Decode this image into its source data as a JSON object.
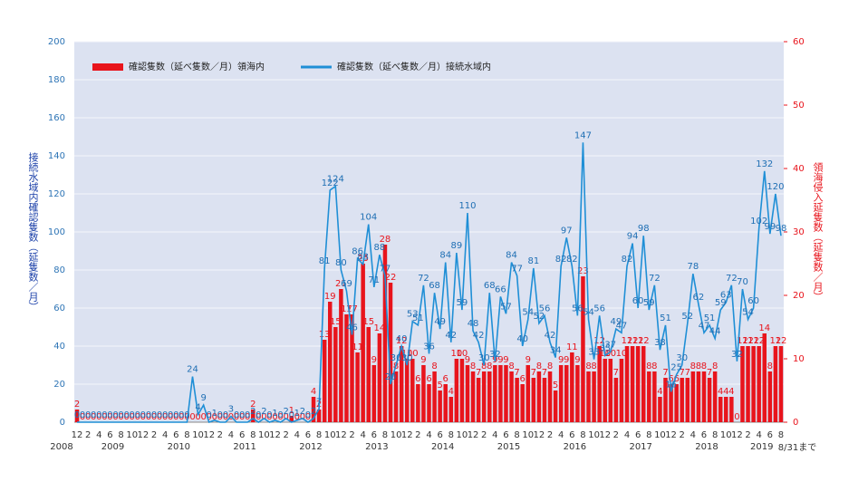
{
  "chart_data": {
    "type": "bar_line",
    "legend": "top-left",
    "grid": true,
    "y_title": "接続水域内確認隻数（延隻数／月）",
    "y2_title": "領海侵入延隻数（延隻数／月）",
    "categories": [
      "12",
      null,
      "2",
      null,
      "4",
      null,
      "6",
      null,
      "8",
      null,
      "10",
      null,
      "12",
      null,
      "2",
      null,
      "4",
      null,
      "6",
      null,
      "8",
      null,
      "10",
      null,
      "12",
      null,
      "2",
      null,
      "4",
      null,
      "6",
      null,
      "8",
      null,
      "10",
      null,
      "12",
      null,
      "2",
      null,
      "4",
      null,
      "6",
      null,
      "8",
      null,
      "10",
      null,
      "12",
      null,
      "2",
      null,
      "4",
      null,
      "6",
      null,
      "8",
      null,
      "10",
      null,
      "12",
      null,
      "2",
      null,
      "4",
      null,
      "6",
      null,
      "8",
      null,
      "10",
      null,
      "12",
      null,
      "2",
      null,
      "4",
      null,
      "6",
      null,
      "8",
      null,
      "10",
      null,
      "12",
      null,
      "2",
      null,
      "4",
      null,
      "6",
      null,
      "8",
      null,
      "10",
      null,
      "12",
      null,
      "2",
      null,
      "4",
      null,
      "6",
      null,
      "8",
      null,
      "10",
      null,
      "12",
      null,
      "2",
      null,
      "4",
      null,
      "6",
      null,
      "8",
      null,
      "10",
      null,
      "12",
      null,
      "2",
      null,
      "4",
      null,
      "6",
      null,
      "8"
    ],
    "years": [
      "2008",
      "2009",
      "2010",
      "2011",
      "2012",
      "2013",
      "2014",
      "2015",
      "2016",
      "2017",
      "2018",
      "2019"
    ],
    "period_note": "8/31まで",
    "ylim": [
      0,
      200
    ],
    "yticks": [
      0,
      20,
      40,
      60,
      80,
      100,
      120,
      140,
      160,
      180,
      200
    ],
    "y2lim": [
      0,
      60
    ],
    "y2ticks": [
      0,
      10,
      20,
      30,
      40,
      50,
      60
    ],
    "series": [
      {
        "name": "確認隻数（延べ隻数／月）領海内",
        "color": "#e8141c",
        "kind": "bar",
        "axis": "y2",
        "values": [
          2,
          0,
          0,
          0,
          0,
          0,
          0,
          0,
          0,
          0,
          0,
          0,
          0,
          0,
          0,
          0,
          0,
          0,
          0,
          0,
          0,
          0,
          0,
          0,
          0,
          0,
          0,
          0,
          0,
          0,
          0,
          0,
          2,
          0,
          0,
          0,
          0,
          0,
          0,
          1,
          0,
          0,
          0,
          4,
          2,
          13,
          19,
          15,
          21,
          17,
          17,
          11,
          25,
          15,
          9,
          14,
          28,
          22,
          8,
          12,
          10,
          10,
          6,
          9,
          6,
          8,
          5,
          6,
          4,
          10,
          10,
          9,
          8,
          7,
          8,
          8,
          9,
          9,
          9,
          8,
          7,
          6,
          9,
          7,
          8,
          7,
          8,
          5,
          9,
          9,
          11,
          9,
          23,
          8,
          8,
          12,
          10,
          10,
          7,
          10,
          12,
          12,
          12,
          12,
          8,
          8,
          4,
          7,
          6,
          6,
          7,
          7,
          8,
          8,
          8,
          7,
          8,
          4,
          4,
          4,
          0,
          12,
          12,
          12,
          12,
          14,
          8,
          12,
          12
        ]
      },
      {
        "name": "確認隻数（延べ隻数／月）接続水域内",
        "color": "#1f8fd6",
        "kind": "line",
        "axis": "y",
        "values": [
          0,
          0,
          0,
          0,
          0,
          0,
          0,
          0,
          0,
          0,
          0,
          0,
          0,
          0,
          0,
          0,
          0,
          0,
          0,
          0,
          0,
          24,
          4,
          9,
          0,
          1,
          0,
          0,
          3,
          0,
          0,
          0,
          2,
          0,
          2,
          0,
          1,
          0,
          2,
          0,
          1,
          2,
          0,
          2,
          7,
          81,
          122,
          124,
          80,
          69,
          46,
          86,
          83,
          104,
          71,
          88,
          77,
          20,
          30,
          40,
          30,
          53,
          51,
          72,
          36,
          68,
          49,
          84,
          42,
          89,
          59,
          110,
          48,
          42,
          30,
          68,
          32,
          66,
          57,
          84,
          77,
          40,
          54,
          81,
          52,
          56,
          42,
          34,
          82,
          97,
          82,
          56,
          147,
          54,
          33,
          56,
          35,
          37,
          49,
          47,
          82,
          94,
          60,
          98,
          59,
          72,
          38,
          51,
          16,
          25,
          30,
          52,
          78,
          62,
          47,
          51,
          44,
          59,
          63,
          72,
          32,
          70,
          54,
          60,
          102,
          132,
          99,
          120,
          98
        ]
      }
    ]
  }
}
